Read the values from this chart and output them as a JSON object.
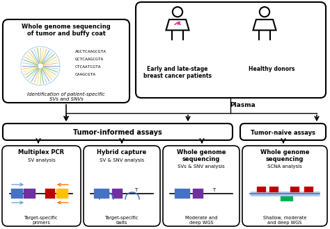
{
  "bg_color": "#ffffff",
  "wgs_title": "Whole genome sequencing\nof tumor and buffy coat",
  "wgs_subtitle": "Identification of patient-specific\nSVs and SNVs",
  "seq_lines": [
    "AGCTCAAGCGTA",
    "GCTCAAGCGTA",
    "CTCAATCGTA",
    "CAAGCGTA"
  ],
  "seq_highlight_char": "G",
  "plasma_label": "Plasma",
  "tumor_informed_label": "Tumor-informed assays",
  "tumor_naive_label": "Tumor-naïve assays",
  "patient_label": "Early and late-stage\nbreast cancer patients",
  "donor_label": "Healthy donors",
  "method_boxes": [
    {
      "title": "Multiplex PCR",
      "subtitle": "SV analysis",
      "bottom": "Target-specific\nprimers"
    },
    {
      "title": "Hybrid capture",
      "subtitle": "SV & SNV analysis",
      "bottom": "Target-specific\nbaits"
    },
    {
      "title": "Whole genome\nsequencing",
      "subtitle": "SVs & SNV analysis",
      "bottom": "Moderate and\ndeep WGS"
    },
    {
      "title": "Whole genome\nsequencing",
      "subtitle": "SCNA analysis",
      "bottom": "Shallow, moderate\nand deep WGS"
    }
  ],
  "colors": {
    "blue": "#4472C4",
    "purple": "#7030A0",
    "red": "#C00000",
    "orange": "#FF6600",
    "yellow": "#FFC000",
    "green": "#00B050",
    "pink": "#E91E8C",
    "arrow_blue": "#5B9BD5",
    "arrow_purple": "#7030A0",
    "arrow_orange": "#FF6600",
    "arrow_yellow": "#FFC000"
  }
}
